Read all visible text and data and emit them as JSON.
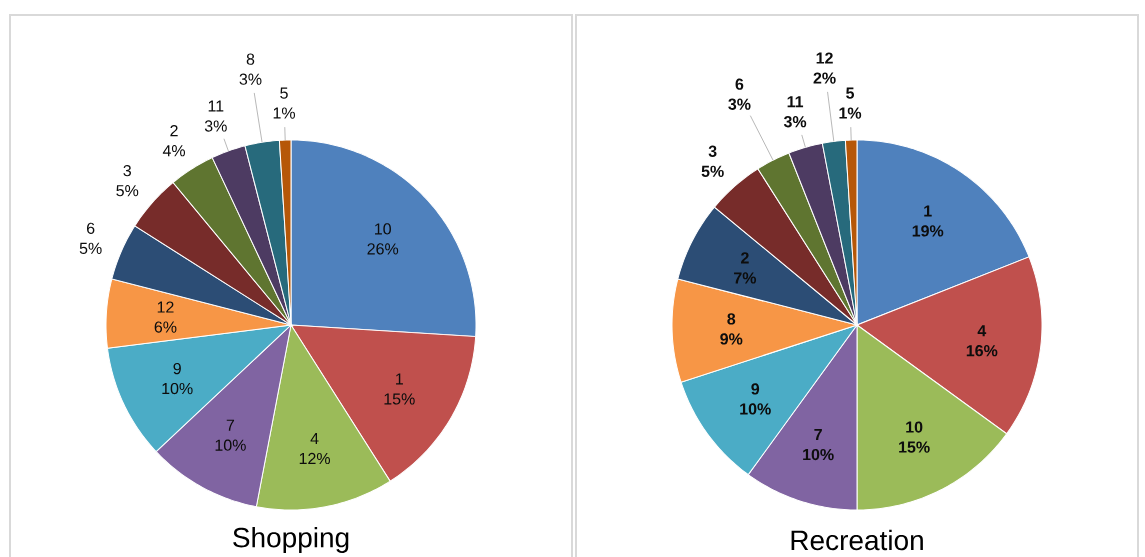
{
  "chart_data": [
    {
      "type": "pie",
      "title": "Shopping",
      "categories": [
        "10",
        "1",
        "4",
        "7",
        "9",
        "12",
        "6",
        "3",
        "2",
        "11",
        "8",
        "5"
      ],
      "values": [
        26,
        15,
        12,
        10,
        10,
        6,
        5,
        5,
        4,
        3,
        3,
        1
      ],
      "value_labels": [
        "26%",
        "15%",
        "12%",
        "10%",
        "10%",
        "6%",
        "5%",
        "5%",
        "4%",
        "3%",
        "3%",
        "1%"
      ],
      "colors": [
        "#4f81bd",
        "#c0504d",
        "#9bbb59",
        "#8064a2",
        "#4bacc6",
        "#f79646",
        "#2c4d75",
        "#772c2a",
        "#5f7530",
        "#4d3b62",
        "#276a7c",
        "#b65708"
      ]
    },
    {
      "type": "pie",
      "title": "Recreation",
      "categories": [
        "1",
        "4",
        "10",
        "7",
        "9",
        "8",
        "2",
        "3",
        "6",
        "11",
        "12",
        "5"
      ],
      "values": [
        19,
        16,
        15,
        10,
        10,
        9,
        7,
        5,
        3,
        3,
        2,
        1
      ],
      "value_labels": [
        "19%",
        "16%",
        "15%",
        "10%",
        "10%",
        "9%",
        "7%",
        "5%",
        "3%",
        "3%",
        "2%",
        "1%"
      ],
      "colors": [
        "#4f81bd",
        "#c0504d",
        "#9bbb59",
        "#8064a2",
        "#4bacc6",
        "#f79646",
        "#2c4d75",
        "#772c2a",
        "#5f7530",
        "#4d3b62",
        "#276a7c",
        "#b65708"
      ]
    }
  ]
}
